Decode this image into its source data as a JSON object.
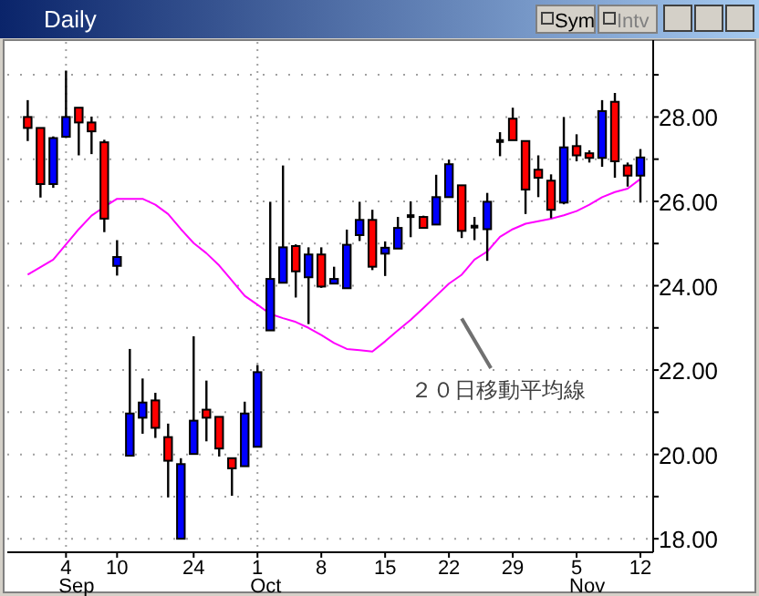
{
  "chart_data": {
    "type": "candlestick",
    "title": "Daily",
    "categories": [
      null,
      null,
      null,
      "4",
      null,
      null,
      null,
      "10",
      null,
      null,
      null,
      null,
      null,
      "24",
      null,
      null,
      null,
      null,
      "1",
      null,
      null,
      null,
      null,
      "8",
      null,
      null,
      null,
      null,
      "15",
      null,
      null,
      null,
      null,
      "22",
      null,
      null,
      null,
      null,
      "29",
      null,
      null,
      null,
      null,
      "5",
      null,
      null,
      null,
      null,
      "12"
    ],
    "ohlc": [
      [
        28.0,
        28.4,
        27.43,
        27.74
      ],
      [
        27.74,
        27.74,
        26.09,
        26.41
      ],
      [
        26.41,
        27.54,
        26.32,
        27.5
      ],
      [
        27.53,
        29.1,
        27.53,
        28.0
      ],
      [
        28.22,
        28.22,
        27.09,
        27.87
      ],
      [
        27.87,
        28.01,
        27.12,
        27.66
      ],
      [
        27.4,
        27.46,
        25.27,
        25.59
      ],
      [
        24.47,
        25.08,
        24.24,
        24.68
      ],
      [
        19.97,
        22.5,
        19.97,
        20.97
      ],
      [
        20.87,
        21.8,
        20.49,
        21.23
      ],
      [
        21.28,
        21.46,
        20.39,
        20.63
      ],
      [
        20.41,
        20.73,
        18.98,
        19.85
      ],
      [
        18.0,
        19.91,
        18.0,
        19.77
      ],
      [
        20.01,
        22.8,
        20.01,
        20.8
      ],
      [
        21.06,
        21.75,
        20.31,
        20.87
      ],
      [
        20.89,
        20.89,
        19.95,
        20.14
      ],
      [
        19.91,
        19.91,
        19.02,
        19.67
      ],
      [
        19.72,
        21.25,
        19.72,
        20.97
      ],
      [
        20.18,
        22.12,
        20.18,
        21.95
      ],
      [
        22.94,
        25.99,
        22.94,
        24.16
      ],
      [
        24.07,
        26.85,
        24.07,
        24.91
      ],
      [
        24.94,
        24.98,
        23.72,
        24.34
      ],
      [
        24.2,
        24.91,
        23.09,
        24.74
      ],
      [
        24.74,
        24.91,
        23.95,
        23.98
      ],
      [
        24.05,
        24.45,
        24.05,
        24.16
      ],
      [
        23.94,
        25.33,
        23.94,
        24.97
      ],
      [
        25.2,
        25.99,
        25.06,
        25.56
      ],
      [
        25.56,
        25.8,
        24.37,
        24.45
      ],
      [
        24.76,
        25.05,
        24.23,
        24.9
      ],
      [
        24.88,
        25.63,
        24.88,
        25.37
      ],
      [
        25.65,
        26.0,
        25.15,
        25.65
      ],
      [
        25.63,
        25.66,
        25.37,
        25.37
      ],
      [
        25.45,
        26.63,
        25.45,
        26.1
      ],
      [
        26.1,
        26.99,
        26.1,
        26.88
      ],
      [
        26.38,
        26.38,
        25.13,
        25.3
      ],
      [
        25.4,
        25.63,
        25.08,
        25.4
      ],
      [
        25.34,
        26.2,
        24.59,
        25.99
      ],
      [
        27.43,
        27.64,
        27.07,
        27.43
      ],
      [
        27.96,
        28.22,
        27.45,
        27.45
      ],
      [
        27.43,
        27.43,
        25.7,
        26.28
      ],
      [
        26.75,
        27.09,
        26.1,
        26.56
      ],
      [
        26.49,
        26.64,
        25.6,
        25.8
      ],
      [
        25.97,
        28.0,
        25.93,
        27.28
      ],
      [
        27.31,
        27.59,
        26.95,
        27.09
      ],
      [
        27.14,
        27.21,
        26.92,
        27.03
      ],
      [
        27.03,
        28.4,
        26.82,
        28.14
      ],
      [
        28.36,
        28.57,
        26.56,
        26.95
      ],
      [
        26.85,
        26.92,
        26.35,
        26.61
      ],
      [
        26.61,
        27.24,
        25.97,
        27.04
      ]
    ],
    "colors": [
      "#ff0000",
      "#ff0000",
      "#0000ff",
      "#0000ff",
      "#ff0000",
      "#ff0000",
      "#ff0000",
      "#0000ff",
      "#0000ff",
      "#0000ff",
      "#ff0000",
      "#ff0000",
      "#0000ff",
      "#0000ff",
      "#ff0000",
      "#ff0000",
      "#ff0000",
      "#0000ff",
      "#0000ff",
      "#0000ff",
      "#0000ff",
      "#ff0000",
      "#0000ff",
      "#ff0000",
      "#0000ff",
      "#0000ff",
      "#0000ff",
      "#ff0000",
      "#0000ff",
      "#0000ff",
      "#000000",
      "#ff0000",
      "#0000ff",
      "#0000ff",
      "#ff0000",
      "#000000",
      "#0000ff",
      "#000000",
      "#ff0000",
      "#ff0000",
      "#ff0000",
      "#ff0000",
      "#0000ff",
      "#ff0000",
      "#ff0000",
      "#0000ff",
      "#ff0000",
      "#ff0000",
      "#0000ff"
    ],
    "series": [
      {
        "type": "line",
        "color": "#ff00ff",
        "values": [
          24.26,
          24.44,
          24.62,
          24.98,
          25.34,
          25.66,
          25.87,
          26.06,
          26.06,
          26.06,
          25.92,
          25.7,
          25.34,
          25.01,
          24.77,
          24.48,
          24.12,
          23.76,
          23.55,
          23.33,
          23.23,
          23.14,
          23.0,
          22.83,
          22.64,
          22.5,
          22.47,
          22.44,
          22.68,
          22.94,
          23.19,
          23.47,
          23.76,
          24.05,
          24.26,
          24.62,
          24.81,
          25.16,
          25.34,
          25.47,
          25.53,
          25.59,
          25.67,
          25.77,
          25.92,
          26.1,
          26.22,
          26.3,
          26.53
        ]
      }
    ],
    "ylim": [
      17.68,
      29.78
    ],
    "yticks": [
      {
        "value": 18,
        "label": "18.00"
      },
      {
        "value": 19,
        "label": null
      },
      {
        "value": 20,
        "label": "20.00"
      },
      {
        "value": 21,
        "label": null
      },
      {
        "value": 22,
        "label": "22.00"
      },
      {
        "value": 23,
        "label": null
      },
      {
        "value": 24,
        "label": "24.00"
      },
      {
        "value": 25,
        "label": null
      },
      {
        "value": 26,
        "label": "26.00"
      },
      {
        "value": 27,
        "label": null
      },
      {
        "value": 28,
        "label": "28.00"
      },
      {
        "value": 29,
        "label": null
      }
    ],
    "grid": "y",
    "ref_lines": [
      {
        "axis": "x",
        "value": "4",
        "color": "#a0a0a0",
        "line_style": "dotted"
      },
      {
        "axis": "x",
        "value": "1",
        "color": "#a0a0a0",
        "line_style": "dotted"
      }
    ],
    "annotations": [
      "２０日移動平均線",
      "Sym",
      "Intv",
      "Sep",
      "Oct",
      "Nov"
    ]
  }
}
